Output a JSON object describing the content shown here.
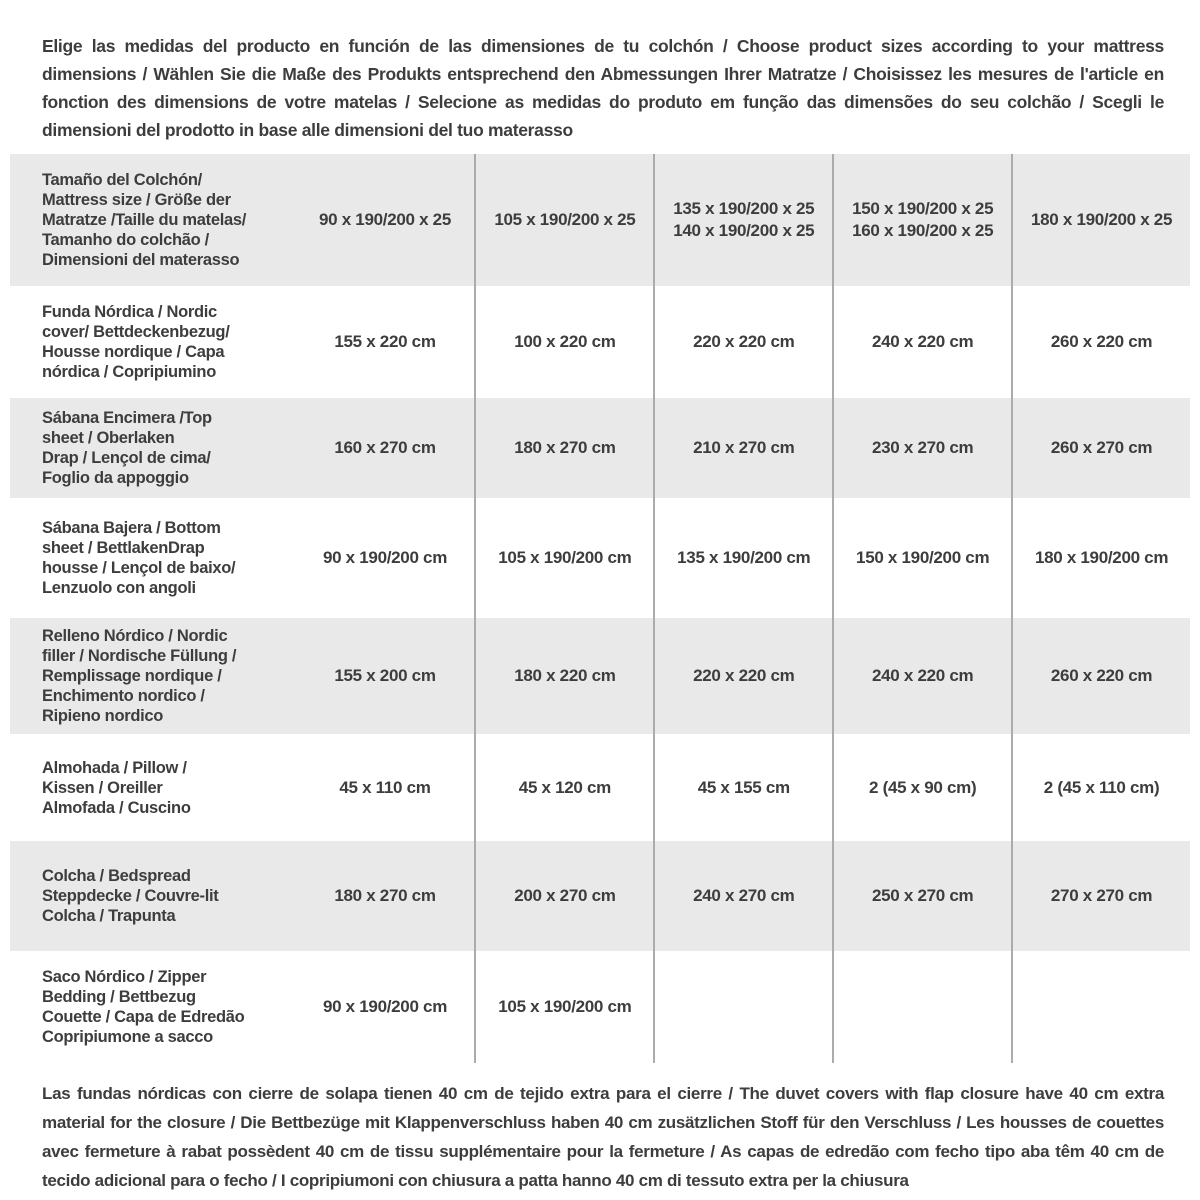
{
  "intro": "Elige las medidas del producto en función de las dimensiones de tu colchón / Choose product sizes according to your mattress dimensions / Wählen Sie die Maße des Produkts entsprechend den Abmessungen Ihrer Matratze / Choisissez les mesures de l'article en fonction des dimensions de votre matelas / Selecione as medidas do produto em função das dimensões do seu colchão / Scegli le dimensioni del prodotto in base alle dimensioni del tuo materasso",
  "colors": {
    "row_shaded": "#e9e9e9",
    "divider": "#ababab",
    "text": "#3d3d3d"
  },
  "table": {
    "header": {
      "label": "Tamaño del Colchón/\nMattress size / Größe der\nMatratze /Taille du matelas/\nTamanho do colchão /\nDimensioni del materasso",
      "columns": [
        "90 x 190/200 x 25",
        "105 x 190/200 x 25",
        "135 x 190/200 x 25\n140 x 190/200 x 25",
        "150 x 190/200 x 25\n160 x 190/200 x 25",
        "180 x 190/200 x 25"
      ]
    },
    "rows": [
      {
        "label": "Funda Nórdica /  Nordic\ncover/ Bettdeckenbezug/\nHousse nordique  / Capa\nnórdica / Copripiumino",
        "values": [
          "155 x 220 cm",
          "100 x 220 cm",
          "220 x 220 cm",
          "240 x 220 cm",
          "260 x 220 cm"
        ]
      },
      {
        "label": "Sábana Encimera /Top\nsheet / Oberlaken\nDrap / Lençol de cima/\nFoglio da appoggio",
        "values": [
          "160 x 270 cm",
          "180 x 270 cm",
          "210 x 270 cm",
          "230 x 270 cm",
          "260 x 270 cm"
        ]
      },
      {
        "label": "Sábana Bajera / Bottom\nsheet / BettlakenDrap\nhousse / Lençol de baixo/\nLenzuolo con angoli",
        "values": [
          "90 x 190/200 cm",
          "105 x 190/200 cm",
          "135 x 190/200 cm",
          "150 x 190/200 cm",
          "180 x 190/200 cm"
        ]
      },
      {
        "label": "Relleno Nórdico / Nordic\nfiller / Nordische Füllung /\nRemplissage nordique /\nEnchimento nordico /\nRipieno nordico",
        "values": [
          "155 x 200 cm",
          "180 x 220 cm",
          "220 x 220 cm",
          "240 x 220 cm",
          "260 x 220 cm"
        ]
      },
      {
        "label": "Almohada  / Pillow /\nKissen / Oreiller\nAlmofada / Cuscino",
        "values": [
          "45 x 110 cm",
          "45 x 120 cm",
          "45 x 155 cm",
          "2 (45 x 90 cm)",
          "2 (45 x 110 cm)"
        ]
      },
      {
        "label": "Colcha / Bedspread\nSteppdecke / Couvre-lit\nColcha / Trapunta",
        "values": [
          "180 x 270 cm",
          "200 x 270 cm",
          "240 x 270 cm",
          "250 x 270 cm",
          "270 x 270 cm"
        ]
      },
      {
        "label": "Saco Nórdico / Zipper\nBedding / Bettbezug\nCouette  / Capa de Edredão\nCopripiumone a sacco",
        "values": [
          "90 x 190/200 cm",
          "105 x 190/200 cm",
          "",
          "",
          ""
        ]
      }
    ]
  },
  "footnote": "Las fundas nórdicas con cierre de solapa tienen 40 cm de tejido extra para el cierre  / The duvet covers with flap closure have 40 cm extra material for the closure / Die Bettbezüge mit Klappenverschluss haben 40 cm zusätzlichen Stoff für den Verschluss / Les housses de couettes avec fermeture à rabat possèdent 40 cm de tissu supplémentaire pour la fermeture / As capas de edredão com fecho tipo aba têm 40 cm de tecido adicional para o fecho / I copripiumoni con chiusura a patta hanno 40 cm di tessuto extra per la chiusura"
}
